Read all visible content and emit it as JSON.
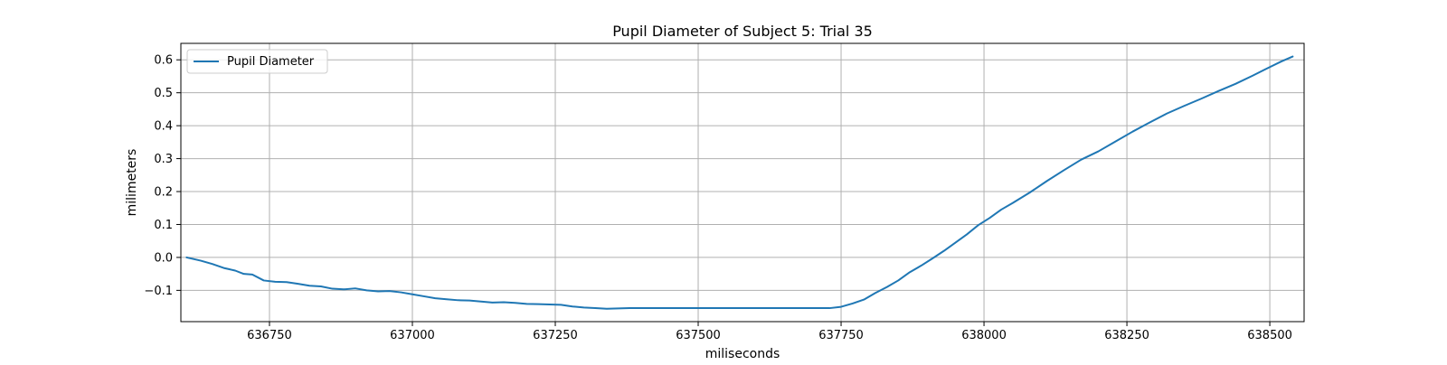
{
  "chart_data": {
    "type": "line",
    "title": "Pupil Diameter of Subject 5: Trial 35",
    "xlabel": "miliseconds",
    "ylabel": "milimeters",
    "xlim": [
      636595,
      638560
    ],
    "ylim": [
      -0.195,
      0.65
    ],
    "x_ticks": [
      636750,
      637000,
      637250,
      637500,
      637750,
      638000,
      638250,
      638500
    ],
    "x_tick_labels": [
      "636750",
      "637000",
      "637250",
      "637500",
      "637750",
      "638000",
      "638250",
      "638500"
    ],
    "y_ticks": [
      -0.1,
      0.0,
      0.1,
      0.2,
      0.3,
      0.4,
      0.5,
      0.6
    ],
    "y_tick_labels": [
      "−0.1",
      "0.0",
      "0.1",
      "0.2",
      "0.3",
      "0.4",
      "0.5",
      "0.6"
    ],
    "grid": true,
    "legend_position": "top-left",
    "series": [
      {
        "name": "Pupil Diameter",
        "color": "#1f77b4",
        "x": [
          636605,
          636630,
          636650,
          636670,
          636690,
          636705,
          636720,
          636740,
          636760,
          636780,
          636800,
          636820,
          636840,
          636860,
          636880,
          636900,
          636920,
          636940,
          636960,
          636980,
          637000,
          637020,
          637040,
          637060,
          637080,
          637100,
          637120,
          637140,
          637160,
          637180,
          637200,
          637220,
          637240,
          637260,
          637280,
          637300,
          637320,
          637340,
          637360,
          637380,
          637400,
          637500,
          637600,
          637700,
          637730,
          637750,
          637770,
          637790,
          637810,
          637830,
          637850,
          637870,
          637890,
          637910,
          637930,
          637950,
          637970,
          637990,
          638010,
          638030,
          638050,
          638080,
          638110,
          638140,
          638170,
          638200,
          638230,
          638260,
          638290,
          638320,
          638350,
          638380,
          638410,
          638440,
          638470,
          638500,
          638520,
          638540
        ],
        "y": [
          0.0,
          -0.01,
          -0.02,
          -0.032,
          -0.04,
          -0.05,
          -0.052,
          -0.07,
          -0.074,
          -0.075,
          -0.08,
          -0.086,
          -0.088,
          -0.095,
          -0.097,
          -0.094,
          -0.1,
          -0.103,
          -0.102,
          -0.106,
          -0.112,
          -0.118,
          -0.124,
          -0.127,
          -0.13,
          -0.131,
          -0.134,
          -0.137,
          -0.136,
          -0.138,
          -0.141,
          -0.142,
          -0.143,
          -0.144,
          -0.149,
          -0.152,
          -0.154,
          -0.156,
          -0.155,
          -0.154,
          -0.154,
          -0.154,
          -0.154,
          -0.154,
          -0.154,
          -0.15,
          -0.14,
          -0.128,
          -0.108,
          -0.09,
          -0.07,
          -0.045,
          -0.025,
          -0.003,
          0.02,
          0.045,
          0.07,
          0.098,
          0.12,
          0.145,
          0.165,
          0.197,
          0.232,
          0.265,
          0.297,
          0.322,
          0.352,
          0.382,
          0.41,
          0.437,
          0.46,
          0.482,
          0.505,
          0.527,
          0.552,
          0.578,
          0.595,
          0.61
        ]
      }
    ]
  }
}
